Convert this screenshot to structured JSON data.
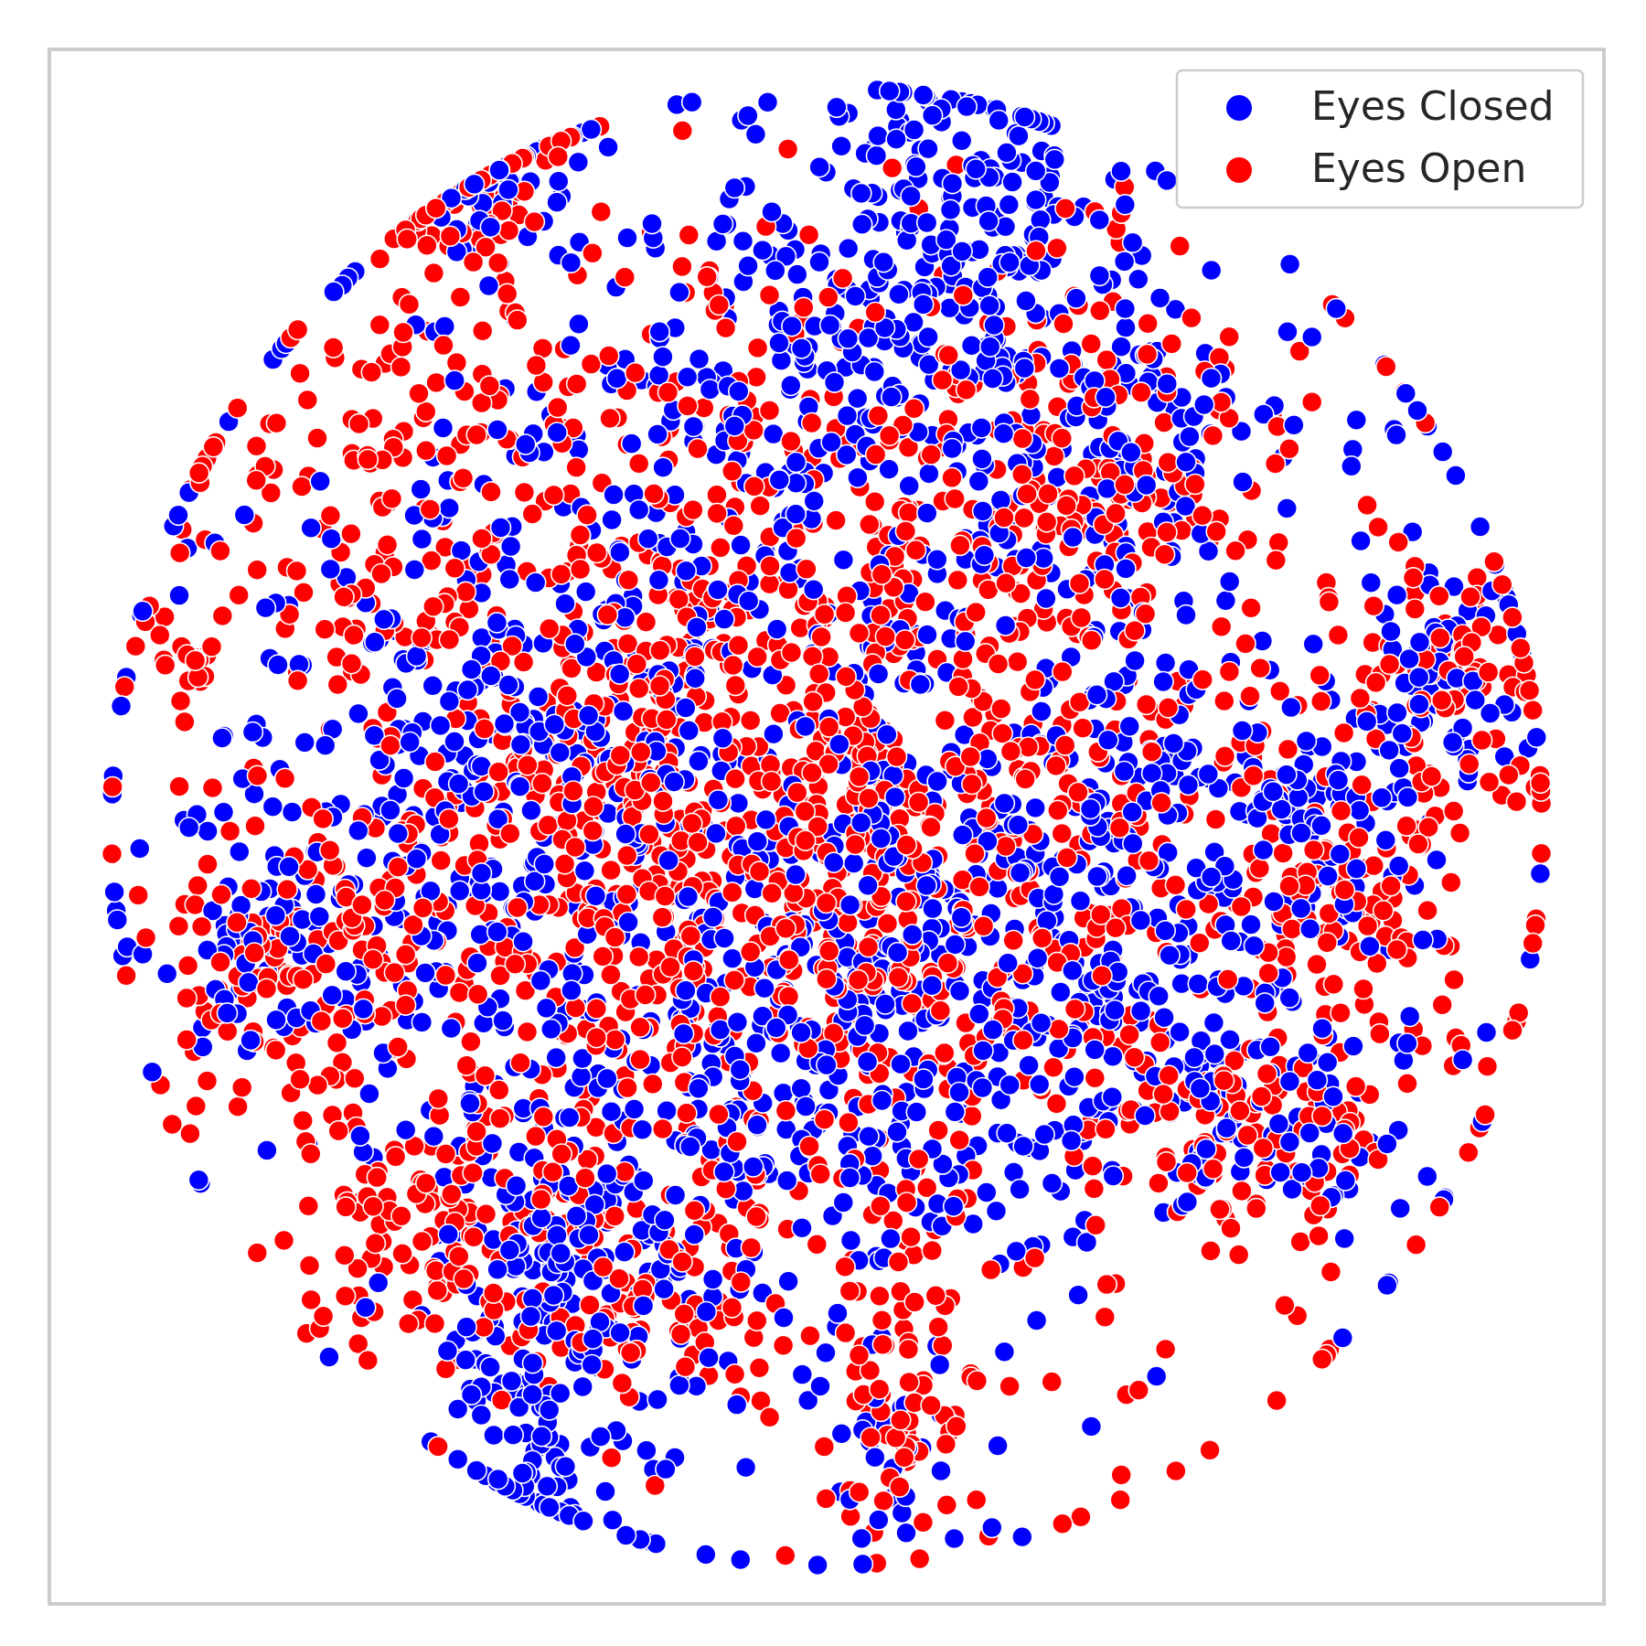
{
  "chart_data": {
    "type": "scatter",
    "title": "",
    "xlabel": "",
    "ylabel": "",
    "axis_ticks": "none",
    "grid": false,
    "legend_placement": "top-right",
    "xlim": [
      -100,
      100
    ],
    "ylim": [
      -100,
      100
    ],
    "point_counts": {
      "Eyes Closed": 2400,
      "Eyes Open": 2400
    },
    "series": [
      {
        "name": "Eyes Closed",
        "color": "#0000ff",
        "clusters": [
          {
            "center": [
              -45,
              84
            ],
            "spread": [
              7,
              7
            ],
            "weight": 0.025
          },
          {
            "center": [
              17,
              81
            ],
            "spread": [
              10,
              9
            ],
            "weight": 0.06
          },
          {
            "center": [
              0,
              60
            ],
            "spread": [
              16,
              12
            ],
            "weight": 0.06
          },
          {
            "center": [
              -40,
              10
            ],
            "spread": [
              16,
              18
            ],
            "weight": 0.09
          },
          {
            "center": [
              -72,
              -15
            ],
            "spread": [
              8,
              9
            ],
            "weight": 0.03
          },
          {
            "center": [
              -36,
              -75
            ],
            "spread": [
              8,
              13
            ],
            "weight": 0.06
          },
          {
            "center": [
              -30,
              -50
            ],
            "spread": [
              12,
              10
            ],
            "weight": 0.05
          },
          {
            "center": [
              5,
              -30
            ],
            "spread": [
              22,
              14
            ],
            "weight": 0.09
          },
          {
            "center": [
              32,
              -8
            ],
            "spread": [
              16,
              18
            ],
            "weight": 0.08
          },
          {
            "center": [
              55,
              -35
            ],
            "spread": [
              11,
              9
            ],
            "weight": 0.04
          },
          {
            "center": [
              40,
              50
            ],
            "spread": [
              10,
              12
            ],
            "weight": 0.04
          },
          {
            "center": [
              79,
              20
            ],
            "spread": [
              6,
              7
            ],
            "weight": 0.025
          },
          {
            "center": [
              62,
              0
            ],
            "spread": [
              7,
              8
            ],
            "weight": 0.03
          },
          {
            "center": [
              8,
              -78
            ],
            "spread": [
              6,
              8
            ],
            "weight": 0.015
          },
          {
            "center": [
              0,
              10
            ],
            "spread": [
              42,
              38
            ],
            "weight": 0.28
          }
        ]
      },
      {
        "name": "Eyes Open",
        "color": "#ff0000",
        "clusters": [
          {
            "center": [
              -47,
              82
            ],
            "spread": [
              7,
              9
            ],
            "weight": 0.03
          },
          {
            "center": [
              -10,
              5
            ],
            "spread": [
              28,
              28
            ],
            "weight": 0.34
          },
          {
            "center": [
              -70,
              -18
            ],
            "spread": [
              10,
              10
            ],
            "weight": 0.04
          },
          {
            "center": [
              -83,
              23
            ],
            "spread": [
              3,
              4
            ],
            "weight": 0.008
          },
          {
            "center": [
              -48,
              -50
            ],
            "spread": [
              11,
              9
            ],
            "weight": 0.04
          },
          {
            "center": [
              35,
              48
            ],
            "spread": [
              10,
              12
            ],
            "weight": 0.04
          },
          {
            "center": [
              80,
              18
            ],
            "spread": [
              6,
              7
            ],
            "weight": 0.025
          },
          {
            "center": [
              65,
              -10
            ],
            "spread": [
              8,
              9
            ],
            "weight": 0.03
          },
          {
            "center": [
              8,
              -78
            ],
            "spread": [
              6,
              8
            ],
            "weight": 0.02
          },
          {
            "center": [
              55,
              -40
            ],
            "spread": [
              9,
              7
            ],
            "weight": 0.03
          },
          {
            "center": [
              -20,
              -60
            ],
            "spread": [
              10,
              7
            ],
            "weight": 0.03
          },
          {
            "center": [
              15,
              0
            ],
            "spread": [
              40,
              40
            ],
            "weight": 0.2
          },
          {
            "center": [
              -60,
              45
            ],
            "spread": [
              10,
              12
            ],
            "weight": 0.03
          }
        ]
      }
    ]
  }
}
